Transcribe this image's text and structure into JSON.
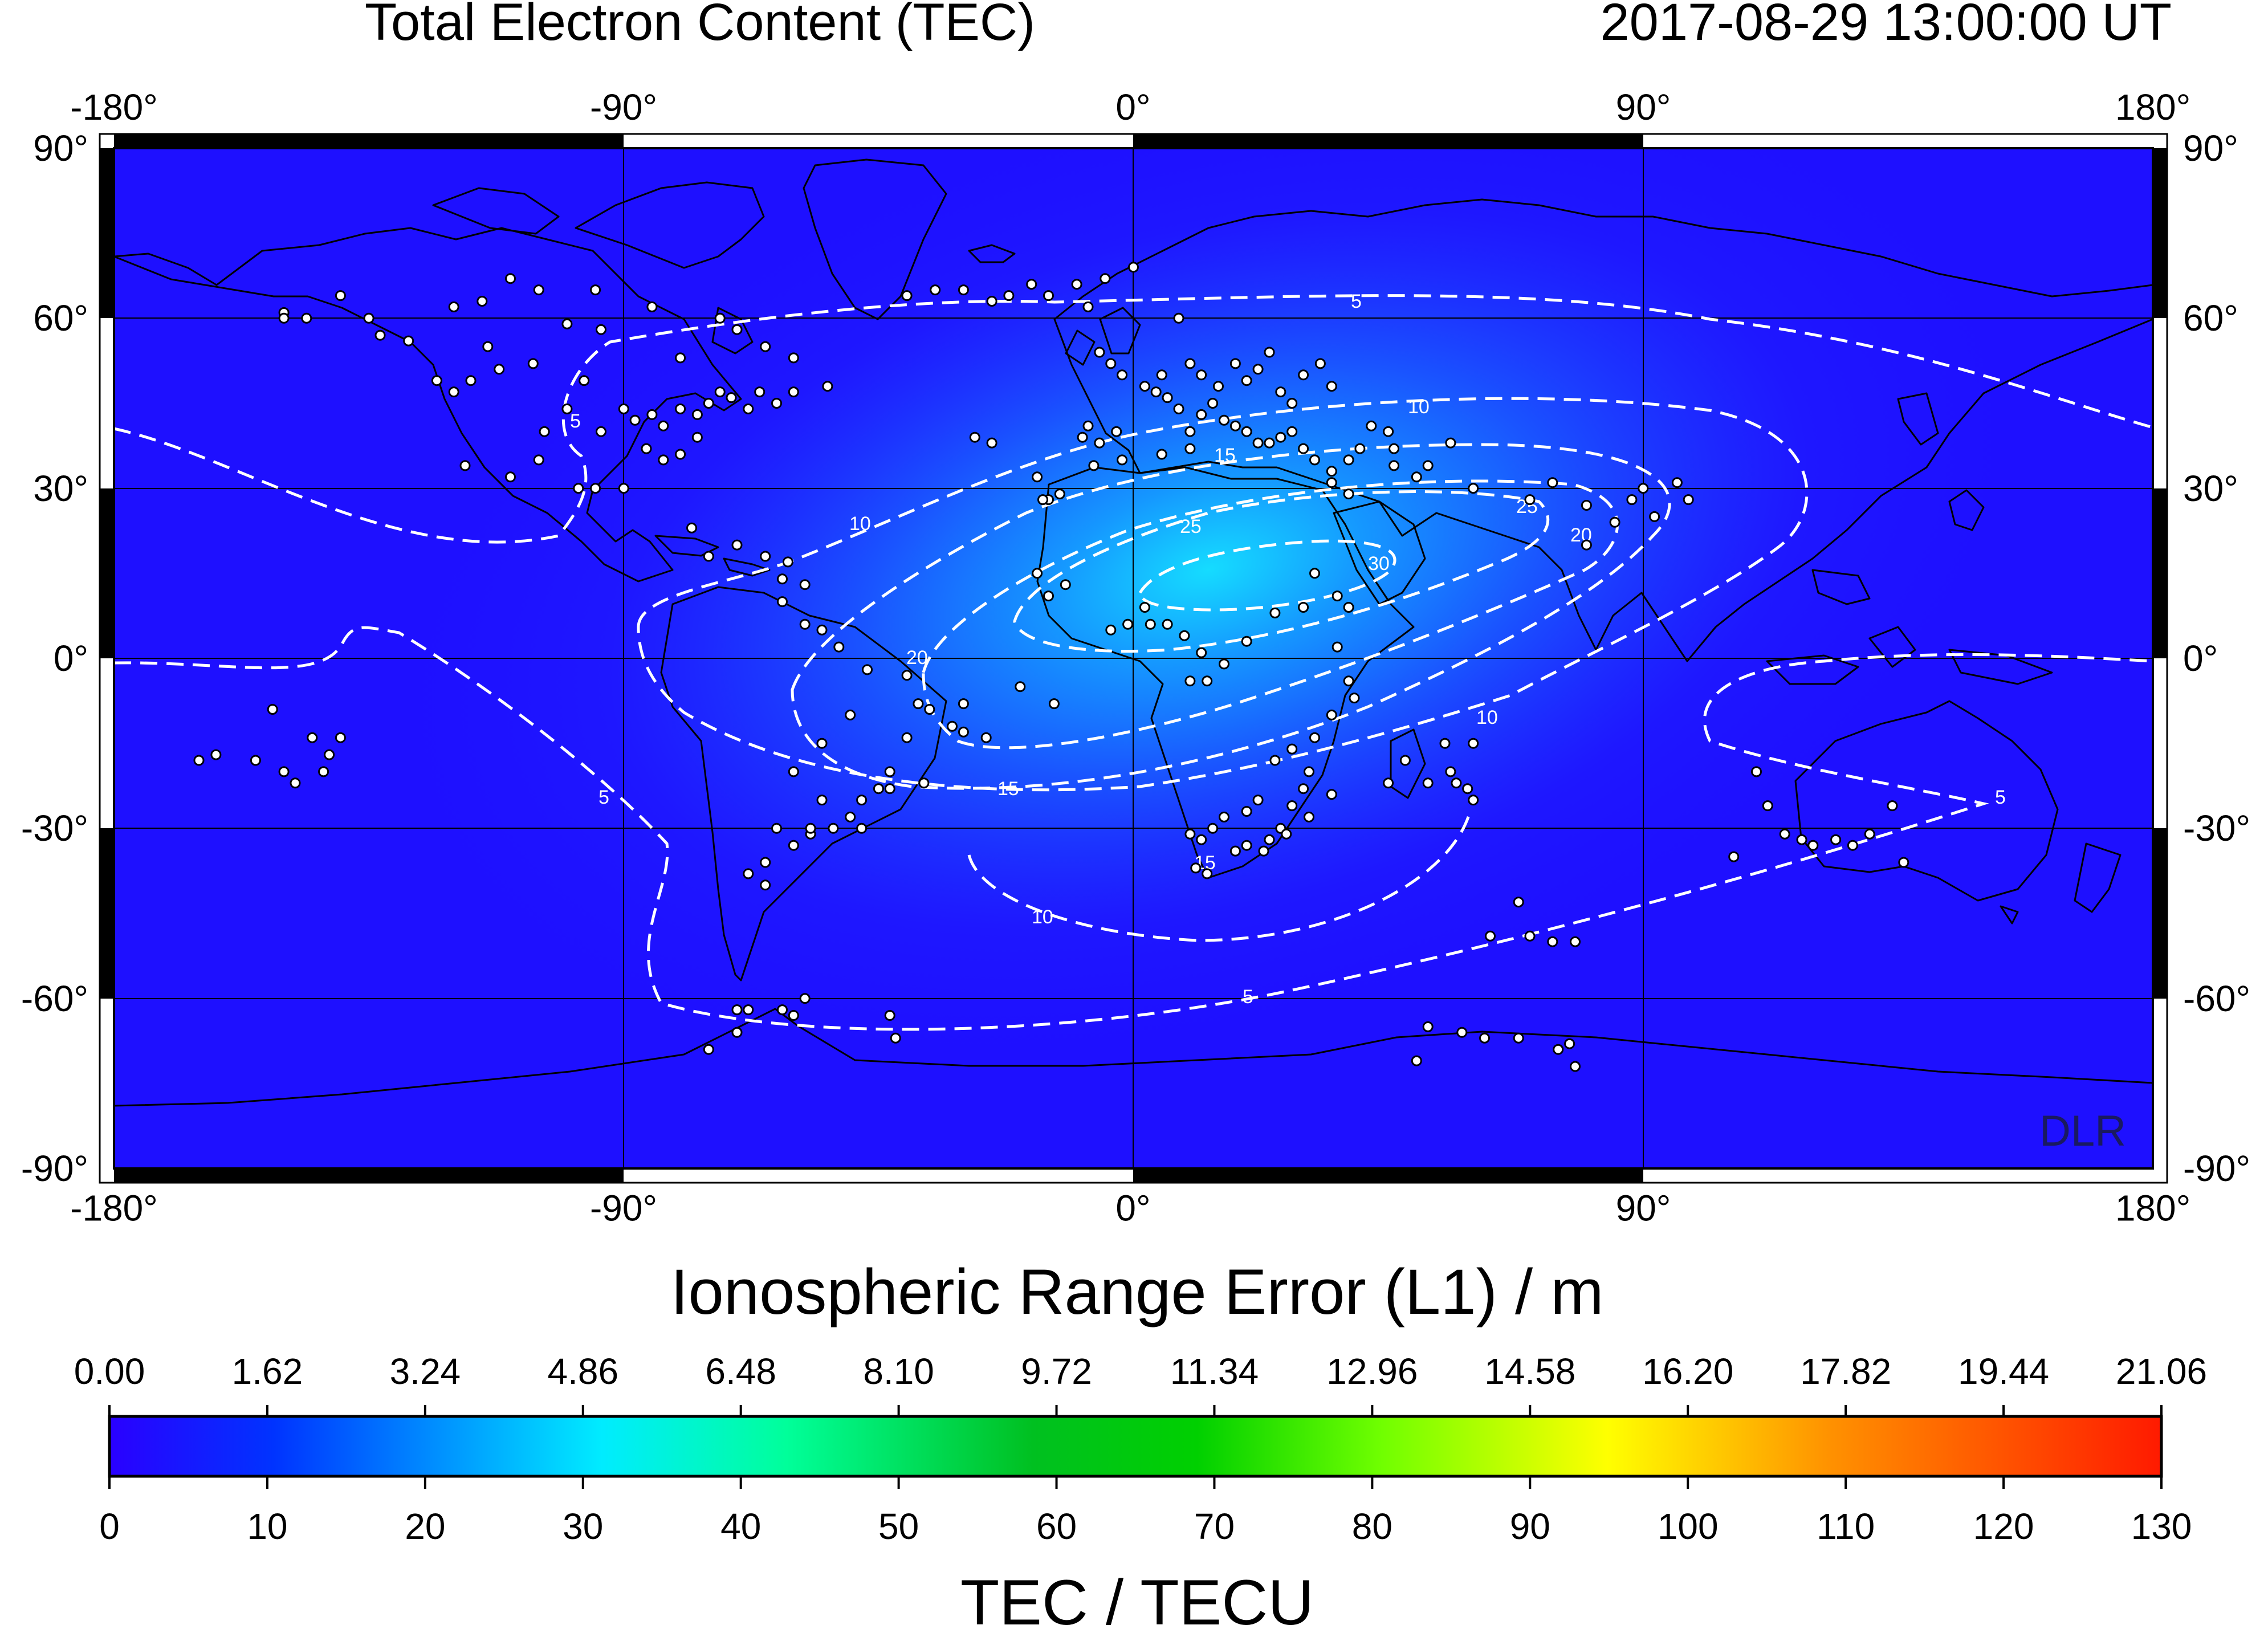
{
  "title": "Total Electron Content (TEC)",
  "timestamp": "2017-08-29  13:00:00 UT",
  "watermark": "DLR",
  "map": {
    "lon_ticks": [
      "-180°",
      "-90°",
      "0°",
      "90°",
      "180°"
    ],
    "lat_ticks": [
      "90°",
      "60°",
      "30°",
      "0°",
      "-30°",
      "-60°",
      "-90°"
    ],
    "background_color": "#1e10ff",
    "peak_color": "#15d8ff",
    "contour_levels": [
      "5",
      "10",
      "15",
      "20",
      "25",
      "30"
    ],
    "contour_color": "#ffffff",
    "station_color": "#ffffff"
  },
  "range_error_bar": {
    "label": "Ionospheric Range Error (L1) / m",
    "ticks": [
      "0.00",
      "1.62",
      "3.24",
      "4.86",
      "6.48",
      "8.10",
      "9.72",
      "11.34",
      "12.96",
      "14.58",
      "16.20",
      "17.82",
      "19.44",
      "21.06"
    ]
  },
  "tec_bar": {
    "label": "TEC / TECU",
    "ticks": [
      "0",
      "10",
      "20",
      "30",
      "40",
      "50",
      "60",
      "70",
      "80",
      "90",
      "100",
      "110",
      "120",
      "130"
    ],
    "colors": [
      "#2000ff",
      "#0080ff",
      "#00ffff",
      "#00ff80",
      "#00c000",
      "#80ff00",
      "#ffff00",
      "#ff8000",
      "#ff0000"
    ]
  },
  "stations": [
    [
      -150,
      61
    ],
    [
      -146,
      60
    ],
    [
      -133,
      57
    ],
    [
      -123,
      49
    ],
    [
      -120,
      47
    ],
    [
      -118,
      34
    ],
    [
      -117,
      49
    ],
    [
      -112,
      51
    ],
    [
      -106,
      52
    ],
    [
      -104,
      40
    ],
    [
      -100,
      44
    ],
    [
      -97,
      49
    ],
    [
      -94,
      40
    ],
    [
      -90,
      44
    ],
    [
      -88,
      42
    ],
    [
      -85,
      43
    ],
    [
      -83,
      41
    ],
    [
      -80,
      44
    ],
    [
      -77,
      43
    ],
    [
      -75,
      45
    ],
    [
      -73,
      47
    ],
    [
      -71,
      46
    ],
    [
      -68,
      44
    ],
    [
      -66,
      47
    ],
    [
      -63,
      45
    ],
    [
      -60,
      47
    ],
    [
      -54,
      48
    ],
    [
      -77,
      39
    ],
    [
      -80,
      36
    ],
    [
      -83,
      35
    ],
    [
      -86,
      37
    ],
    [
      -90,
      30
    ],
    [
      -95,
      30
    ],
    [
      -98,
      30
    ],
    [
      -105,
      35
    ],
    [
      -110,
      32
    ],
    [
      -114,
      55
    ],
    [
      -100,
      59
    ],
    [
      -94,
      58
    ],
    [
      -120,
      62
    ],
    [
      -115,
      63
    ],
    [
      -110,
      67
    ],
    [
      -105,
      65
    ],
    [
      -95,
      65
    ],
    [
      -85,
      62
    ],
    [
      -80,
      53
    ],
    [
      -73,
      60
    ],
    [
      -70,
      58
    ],
    [
      -65,
      55
    ],
    [
      -60,
      53
    ],
    [
      -140,
      64
    ],
    [
      -135,
      60
    ],
    [
      -128,
      56
    ],
    [
      -150,
      60
    ],
    [
      -40,
      64
    ],
    [
      -30,
      65
    ],
    [
      -22,
      64
    ],
    [
      -18,
      66
    ],
    [
      -15,
      64
    ],
    [
      -5,
      67
    ],
    [
      0,
      69
    ],
    [
      -8,
      62
    ],
    [
      -25,
      63
    ],
    [
      -35,
      65
    ],
    [
      -10,
      66
    ],
    [
      8,
      60
    ],
    [
      5,
      50
    ],
    [
      2,
      48
    ],
    [
      -2,
      50
    ],
    [
      -4,
      52
    ],
    [
      -6,
      54
    ],
    [
      10,
      52
    ],
    [
      12,
      50
    ],
    [
      15,
      48
    ],
    [
      18,
      52
    ],
    [
      20,
      49
    ],
    [
      22,
      51
    ],
    [
      24,
      54
    ],
    [
      26,
      47
    ],
    [
      28,
      45
    ],
    [
      30,
      50
    ],
    [
      33,
      52
    ],
    [
      35,
      48
    ],
    [
      14,
      45
    ],
    [
      12,
      43
    ],
    [
      16,
      42
    ],
    [
      18,
      41
    ],
    [
      20,
      40
    ],
    [
      22,
      38
    ],
    [
      24,
      38
    ],
    [
      26,
      39
    ],
    [
      28,
      40
    ],
    [
      30,
      37
    ],
    [
      32,
      35
    ],
    [
      35,
      33
    ],
    [
      38,
      35
    ],
    [
      40,
      37
    ],
    [
      10,
      40
    ],
    [
      8,
      44
    ],
    [
      6,
      46
    ],
    [
      4,
      47
    ],
    [
      -3,
      40
    ],
    [
      -6,
      38
    ],
    [
      -8,
      41
    ],
    [
      -9,
      39
    ],
    [
      -15,
      28
    ],
    [
      -17,
      32
    ],
    [
      -25,
      38
    ],
    [
      -28,
      39
    ],
    [
      -16,
      28
    ],
    [
      -13,
      29
    ],
    [
      -7,
      34
    ],
    [
      -2,
      35
    ],
    [
      5,
      36
    ],
    [
      10,
      37
    ],
    [
      -17,
      15
    ],
    [
      -12,
      13
    ],
    [
      -15,
      11
    ],
    [
      -4,
      5
    ],
    [
      -1,
      6
    ],
    [
      2,
      9
    ],
    [
      6,
      6
    ],
    [
      3,
      6
    ],
    [
      10,
      -4
    ],
    [
      13,
      -4
    ],
    [
      12,
      1
    ],
    [
      9,
      4
    ],
    [
      16,
      -1
    ],
    [
      20,
      3
    ],
    [
      25,
      8
    ],
    [
      30,
      9
    ],
    [
      32,
      15
    ],
    [
      36,
      11
    ],
    [
      38,
      9
    ],
    [
      36,
      2
    ],
    [
      38,
      -4
    ],
    [
      39,
      -7
    ],
    [
      35,
      -10
    ],
    [
      32,
      -14
    ],
    [
      28,
      -16
    ],
    [
      25,
      -18
    ],
    [
      28,
      -26
    ],
    [
      26,
      -30
    ],
    [
      24,
      -32
    ],
    [
      20,
      -33
    ],
    [
      18,
      -34
    ],
    [
      14,
      -30
    ],
    [
      12,
      -32
    ],
    [
      16,
      -28
    ],
    [
      20,
      -27
    ],
    [
      22,
      -25
    ],
    [
      30,
      -23
    ],
    [
      27,
      -31
    ],
    [
      31,
      -28
    ],
    [
      23,
      -34
    ],
    [
      13,
      -38
    ],
    [
      11,
      -37
    ],
    [
      10,
      -31
    ],
    [
      31,
      -20
    ],
    [
      35,
      -24
    ],
    [
      48,
      -18
    ],
    [
      52,
      -22
    ],
    [
      56,
      -20
    ],
    [
      57,
      -22
    ],
    [
      59,
      -23
    ],
    [
      60,
      -25
    ],
    [
      45,
      -22
    ],
    [
      55,
      -15
    ],
    [
      60,
      -15
    ],
    [
      68,
      -43
    ],
    [
      70,
      -49
    ],
    [
      63,
      -49
    ],
    [
      74,
      -50
    ],
    [
      78,
      -50
    ],
    [
      35,
      31
    ],
    [
      38,
      29
    ],
    [
      46,
      34
    ],
    [
      52,
      34
    ],
    [
      60,
      30
    ],
    [
      70,
      28
    ],
    [
      80,
      27
    ],
    [
      88,
      28
    ],
    [
      92,
      25
    ],
    [
      96,
      31
    ],
    [
      98,
      28
    ],
    [
      90,
      30
    ],
    [
      85,
      24
    ],
    [
      80,
      20
    ],
    [
      74,
      31
    ],
    [
      50,
      32
    ],
    [
      45,
      40
    ],
    [
      42,
      41
    ],
    [
      46,
      37
    ],
    [
      56,
      38
    ],
    [
      -26,
      -14
    ],
    [
      -14,
      -8
    ],
    [
      -20,
      -5
    ],
    [
      -30,
      -8
    ],
    [
      -32,
      -12
    ],
    [
      -38,
      -8
    ],
    [
      -40,
      -14
    ],
    [
      -43,
      -20
    ],
    [
      -45,
      -23
    ],
    [
      -48,
      -25
    ],
    [
      -50,
      -28
    ],
    [
      -53,
      -30
    ],
    [
      -55,
      -25
    ],
    [
      -57,
      -31
    ],
    [
      -60,
      -33
    ],
    [
      -63,
      -30
    ],
    [
      -65,
      -36
    ],
    [
      -68,
      -38
    ],
    [
      -65,
      -40
    ],
    [
      -60,
      -20
    ],
    [
      -55,
      -15
    ],
    [
      -50,
      -10
    ],
    [
      -47,
      -2
    ],
    [
      -52,
      2
    ],
    [
      -55,
      5
    ],
    [
      -58,
      6
    ],
    [
      -62,
      10
    ],
    [
      -65,
      18
    ],
    [
      -70,
      20
    ],
    [
      -75,
      18
    ],
    [
      -78,
      23
    ],
    [
      -62,
      14
    ],
    [
      -61,
      17
    ],
    [
      -58,
      13
    ],
    [
      -57,
      -30
    ],
    [
      -48,
      -30
    ],
    [
      -43,
      -23
    ],
    [
      -37,
      -22
    ],
    [
      -40,
      -3
    ],
    [
      -36,
      -9
    ],
    [
      -30,
      -13
    ],
    [
      -68,
      -62
    ],
    [
      -70,
      -62
    ],
    [
      -60,
      -63
    ],
    [
      -58,
      -60
    ],
    [
      -62,
      -62
    ],
    [
      -75,
      -69
    ],
    [
      -43,
      -63
    ],
    [
      -42,
      -67
    ],
    [
      -70,
      -66
    ],
    [
      -155,
      -18
    ],
    [
      -150,
      -20
    ],
    [
      -148,
      -22
    ],
    [
      -143,
      -20
    ],
    [
      -142,
      -17
    ],
    [
      -140,
      -14
    ],
    [
      -145,
      -14
    ],
    [
      -162,
      -17
    ],
    [
      -165,
      -18
    ],
    [
      -152,
      -9
    ],
    [
      110,
      -20
    ],
    [
      112,
      -26
    ],
    [
      115,
      -31
    ],
    [
      118,
      -32
    ],
    [
      120,
      -33
    ],
    [
      124,
      -32
    ],
    [
      127,
      -33
    ],
    [
      130,
      -31
    ],
    [
      134,
      -26
    ],
    [
      136,
      -36
    ],
    [
      106,
      -35
    ],
    [
      52,
      -65
    ],
    [
      58,
      -66
    ],
    [
      62,
      -67
    ],
    [
      68,
      -67
    ],
    [
      77,
      -68
    ],
    [
      75,
      -69
    ],
    [
      78,
      -72
    ],
    [
      50,
      -71
    ]
  ]
}
